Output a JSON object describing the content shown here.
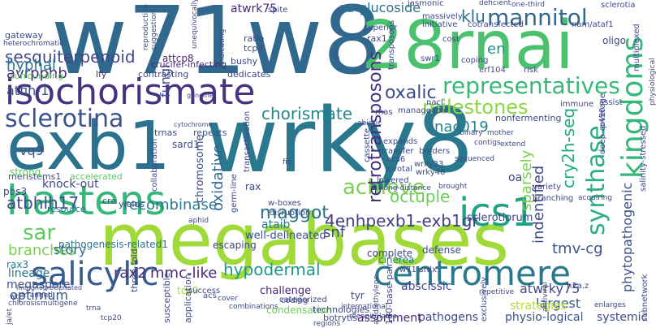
{
  "words": [
    {
      "text": "w71w8",
      "color": "#31688e"
    },
    {
      "text": "wrky8",
      "color": "#2a788e"
    },
    {
      "text": "megabases",
      "color": "#a0da39"
    },
    {
      "text": "28rnai",
      "color": "#4ac16d"
    },
    {
      "text": "exb1",
      "color": "#2c728e"
    },
    {
      "text": "isochorismate",
      "color": "#46327e"
    },
    {
      "text": "hastens",
      "color": "#35b779"
    },
    {
      "text": "centromere",
      "color": "#2a788e"
    },
    {
      "text": "ics1",
      "color": "#20a486"
    },
    {
      "text": "salicylic",
      "color": "#365c8d"
    },
    {
      "text": "representatives",
      "color": "#38b977"
    },
    {
      "text": "sclerotina",
      "color": "#3b528b"
    },
    {
      "text": "mannitol",
      "color": "#31688e"
    },
    {
      "text": "kingdoms",
      "color": "#35b779"
    },
    {
      "text": "synthase",
      "color": "#29af7f"
    },
    {
      "text": "achieve",
      "color": "#7ad151"
    },
    {
      "text": "milestones",
      "color": "#8bd646"
    },
    {
      "text": "retrotransposons",
      "color": "#46327e"
    },
    {
      "text": "4enhpexb1-exb1gr",
      "color": "#433e85"
    },
    {
      "text": "sar",
      "color": "#5ec962"
    },
    {
      "text": "cry2h-seq",
      "color": "#22a884"
    },
    {
      "text": "maggot",
      "color": "#2c728e"
    },
    {
      "text": "octuple",
      "color": "#6ccd5a"
    },
    {
      "text": "hypodermal",
      "color": "#1f988b"
    },
    {
      "text": "chorismate",
      "color": "#24868e"
    },
    {
      "text": "sesquiterpenoid",
      "color": "#3e4989"
    },
    {
      "text": "avrpphb",
      "color": "#482878"
    },
    {
      "text": "atfin-1",
      "color": "#3b528b"
    },
    {
      "text": "hyphal",
      "color": "#2a788e"
    },
    {
      "text": "oxalic",
      "color": "#3e4989"
    },
    {
      "text": "atbhlh17",
      "color": "#3e4989"
    },
    {
      "text": "branches",
      "color": "#7ad151"
    },
    {
      "text": "story",
      "color": "#31688e"
    },
    {
      "text": "salicylic",
      "color": "#365c8d"
    },
    {
      "text": "phytopathogenic",
      "color": "#3b528b"
    },
    {
      "text": "indentified",
      "color": "#3e4989"
    },
    {
      "text": "recombinase",
      "color": "#2a788e"
    },
    {
      "text": "sparsely",
      "color": "#7ad151"
    },
    {
      "text": "oxidative",
      "color": "#31688e"
    },
    {
      "text": "nac019",
      "color": "#26828e"
    },
    {
      "text": "klu",
      "color": "#2c728e"
    },
    {
      "text": "en",
      "color": "#1f988b"
    },
    {
      "text": "snf",
      "color": "#3e4989"
    },
    {
      "text": "tmv-cg",
      "color": "#3b528b"
    },
    {
      "text": "mmc-like",
      "color": "#482878"
    },
    {
      "text": "rax2",
      "color": "#46327e"
    },
    {
      "text": "optimum",
      "color": "#3b528b"
    },
    {
      "text": "lineage",
      "color": "#2c728e"
    },
    {
      "text": "megaspore",
      "color": "#3b528b"
    },
    {
      "text": "knock-out",
      "color": "#414487"
    },
    {
      "text": "vq9",
      "color": "#3b528b"
    },
    {
      "text": "fungi",
      "color": "#3e4989"
    },
    {
      "text": "atwrky75",
      "color": "#3e4989"
    },
    {
      "text": "sa-glucoside",
      "color": "#2c728e"
    },
    {
      "text": "atwrk75",
      "color": "#482878"
    },
    {
      "text": "assortment",
      "color": "#482878"
    },
    {
      "text": "sclerotiorum",
      "color": "#3e4989"
    },
    {
      "text": "challenge",
      "color": "#482878"
    },
    {
      "text": "pathogens",
      "color": "#3e4989"
    },
    {
      "text": "physio-logical",
      "color": "#3b528b"
    },
    {
      "text": "largest",
      "color": "#38598c"
    },
    {
      "text": "systemic",
      "color": "#3e4989"
    },
    {
      "text": "strategies",
      "color": "#b5de2b"
    },
    {
      "text": "ataib",
      "color": "#2a788e"
    },
    {
      "text": "well-delineated",
      "color": "#3b528b"
    },
    {
      "text": "escaping",
      "color": "#414487"
    },
    {
      "text": "pathogenesis-related1",
      "color": "#2c728e"
    },
    {
      "text": "rax3",
      "color": "#2a788e"
    },
    {
      "text": "tcp9",
      "color": "#a0da39"
    },
    {
      "text": "abscissic",
      "color": "#3e4989"
    },
    {
      "text": "tyr",
      "color": "#3e4989"
    },
    {
      "text": "condensation",
      "color": "#6ccd5a"
    },
    {
      "text": "cinerea",
      "color": "#2a788e"
    },
    {
      "text": "defense",
      "color": "#3e4989"
    },
    {
      "text": "complete",
      "color": "#3e4989"
    },
    {
      "text": "chromosome",
      "color": "#3e4989"
    },
    {
      "text": "sard1",
      "color": "#3b528b"
    },
    {
      "text": "accelerated",
      "color": "#5ec962"
    },
    {
      "text": "repeats",
      "color": "#3b528b"
    },
    {
      "text": "trnas",
      "color": "#3e4989"
    },
    {
      "text": "meristems1",
      "color": "#3e4989"
    },
    {
      "text": "pbs3",
      "color": "#3e4989"
    },
    {
      "text": "strong",
      "color": "#5ec962"
    },
    {
      "text": "resource",
      "color": "#2c728e"
    },
    {
      "text": "cre",
      "color": "#3e4989"
    },
    {
      "text": "yields",
      "color": "#3e4989"
    },
    {
      "text": "rax",
      "color": "#3e4989"
    },
    {
      "text": "attcp8",
      "color": "#482878"
    },
    {
      "text": "crucifer-infecting",
      "color": "#482878"
    },
    {
      "text": "dedicates",
      "color": "#3e4989"
    },
    {
      "text": "contrasting",
      "color": "#3e4989"
    },
    {
      "text": "surrounding",
      "color": "#5ec962"
    },
    {
      "text": "lfy",
      "color": "#482878"
    },
    {
      "text": "gateway",
      "color": "#3e4989"
    },
    {
      "text": "heterochromatic",
      "color": "#3e4989"
    },
    {
      "text": "ratio",
      "color": "#3e4989"
    },
    {
      "text": "tcp8",
      "color": "#3e4989"
    },
    {
      "text": "bushy",
      "color": "#3e4989"
    },
    {
      "text": "spite",
      "color": "#3e4989"
    },
    {
      "text": "jasmonic",
      "color": "#3e4989"
    },
    {
      "text": "deficient",
      "color": "#3e4989"
    },
    {
      "text": "rax1",
      "color": "#3e4989"
    },
    {
      "text": "superior",
      "color": "#3e4989"
    },
    {
      "text": "massively",
      "color": "#3e4989"
    },
    {
      "text": "initiative",
      "color": "#3e4989"
    },
    {
      "text": "cotransfected",
      "color": "#3e4989"
    },
    {
      "text": "nam/ataf1",
      "color": "#3e4989"
    },
    {
      "text": "oligo",
      "color": "#3e4989"
    },
    {
      "text": "cost",
      "color": "#3e4989"
    },
    {
      "text": "swr1",
      "color": "#3e4989"
    },
    {
      "text": "coping",
      "color": "#3e4989"
    },
    {
      "text": "erf104",
      "color": "#3e4989"
    },
    {
      "text": "risk",
      "color": "#3e4989"
    },
    {
      "text": "multiplexed",
      "color": "#3e4989"
    },
    {
      "text": "sclerotia",
      "color": "#3e4989"
    },
    {
      "text": "deep-coverage",
      "color": "#3e4989"
    },
    {
      "text": "nonfermenting",
      "color": "#3e4989"
    },
    {
      "text": "manageable",
      "color": "#3e4989"
    },
    {
      "text": "nacl",
      "color": "#3e4989"
    },
    {
      "text": "immune",
      "color": "#3e4989"
    },
    {
      "text": "assist",
      "color": "#3e4989"
    },
    {
      "text": "p450",
      "color": "#3e4989"
    },
    {
      "text": "salinity-stressed",
      "color": "#3e4989"
    },
    {
      "text": "wrky23",
      "color": "#3e4989"
    },
    {
      "text": "wrky46",
      "color": "#3e4989"
    },
    {
      "text": "oa",
      "color": "#3e4989"
    },
    {
      "text": "variety",
      "color": "#3e4989"
    },
    {
      "text": "branching",
      "color": "#3e4989"
    },
    {
      "text": "acquiring",
      "color": "#3e4989"
    },
    {
      "text": "borders",
      "color": "#3e4989"
    },
    {
      "text": "transfer",
      "color": "#3e4989"
    },
    {
      "text": "expands",
      "color": "#3e4989"
    },
    {
      "text": "acs6",
      "color": "#3e4989"
    },
    {
      "text": "pivotal",
      "color": "#3e4989"
    },
    {
      "text": "lowered",
      "color": "#3e4989"
    },
    {
      "text": "cassette",
      "color": "#3e4989"
    },
    {
      "text": "transactivation",
      "color": "#3e4989"
    },
    {
      "text": "collaboration",
      "color": "#3e4989"
    },
    {
      "text": "germ-line",
      "color": "#3e4989"
    },
    {
      "text": "w-boxes",
      "color": "#3e4989"
    },
    {
      "text": "disruption",
      "color": "#3e4989"
    },
    {
      "text": "success",
      "color": "#3e4989"
    },
    {
      "text": "cover",
      "color": "#3e4989"
    },
    {
      "text": "combinations",
      "color": "#3e4989"
    },
    {
      "text": "international",
      "color": "#3e4989"
    },
    {
      "text": "recapitulates",
      "color": "#3e4989"
    },
    {
      "text": "w71-srdx",
      "color": "#3e4989"
    },
    {
      "text": "h2a.z",
      "color": "#3e4989"
    },
    {
      "text": "three-fold",
      "color": "#3e4989"
    },
    {
      "text": "susceptible",
      "color": "#3e4989"
    },
    {
      "text": "acs",
      "color": "#3e4989"
    },
    {
      "text": "application",
      "color": "#3e4989"
    },
    {
      "text": "technologies",
      "color": "#3e4989"
    },
    {
      "text": "categorized",
      "color": "#3e4989"
    },
    {
      "text": "coding",
      "color": "#3e4989"
    },
    {
      "text": "botrytis",
      "color": "#3e4989"
    },
    {
      "text": "regions",
      "color": "#3e4989"
    },
    {
      "text": "180-base-pair",
      "color": "#3e4989"
    },
    {
      "text": "repetitive",
      "color": "#3e4989"
    },
    {
      "text": "exclusively",
      "color": "#3e4989"
    },
    {
      "text": "antiviral",
      "color": "#3e4989"
    },
    {
      "text": "enlarges",
      "color": "#3e4989"
    },
    {
      "text": "subnetwork",
      "color": "#3e4989"
    },
    {
      "text": "chlorosis",
      "color": "#3e4989"
    },
    {
      "text": "multigene",
      "color": "#3e4989"
    },
    {
      "text": "wt",
      "color": "#3e4989"
    },
    {
      "text": "arranged",
      "color": "#3e4989"
    },
    {
      "text": "immunoprecipitated",
      "color": "#3e4989"
    },
    {
      "text": "tcp20",
      "color": "#3e4989"
    },
    {
      "text": "trna",
      "color": "#3e4989"
    },
    {
      "text": "ja/et",
      "color": "#3e4989"
    },
    {
      "text": "cytochrome",
      "color": "#3e4989"
    },
    {
      "text": "genome",
      "color": "#3e4989"
    },
    {
      "text": "reproductive",
      "color": "#3e4989"
    },
    {
      "text": "suggestion",
      "color": "#3e4989"
    },
    {
      "text": "indicating",
      "color": "#3e4989"
    },
    {
      "text": "long-distance",
      "color": "#3e4989"
    },
    {
      "text": "brought",
      "color": "#3e4989"
    },
    {
      "text": "sequenced",
      "color": "#3e4989"
    },
    {
      "text": "binary",
      "color": "#3e4989"
    },
    {
      "text": "mother",
      "color": "#3e4989"
    },
    {
      "text": "contigs",
      "color": "#3e4989"
    },
    {
      "text": "extend",
      "color": "#3e4989"
    },
    {
      "text": "one-third",
      "color": "#3e4989"
    },
    {
      "text": "abiotic",
      "color": "#3e4989"
    },
    {
      "text": "aphid",
      "color": "#3e4989"
    },
    {
      "text": "gus",
      "color": "#3e4989"
    },
    {
      "text": "rnas",
      "color": "#3e4989"
    },
    {
      "text": "transposons",
      "color": "#3e4989"
    },
    {
      "text": "fis",
      "color": "#3e4989"
    },
    {
      "text": "unequivocally",
      "color": "#3e4989"
    },
    {
      "text": "acid/ethylene",
      "color": "#3e4989"
    },
    {
      "text": "physiological",
      "color": "#3e4989"
    }
  ]
}
